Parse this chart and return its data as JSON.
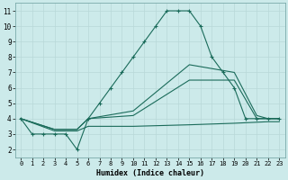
{
  "xlabel": "Humidex (Indice chaleur)",
  "ylabel": "",
  "bg_color": "#cceaea",
  "line_color": "#1a6b5a",
  "xlim": [
    -0.5,
    23.5
  ],
  "ylim": [
    1.5,
    11.5
  ],
  "xticks": [
    0,
    1,
    2,
    3,
    4,
    5,
    6,
    7,
    8,
    9,
    10,
    11,
    12,
    13,
    14,
    15,
    16,
    17,
    18,
    19,
    20,
    21,
    22,
    23
  ],
  "yticks": [
    2,
    3,
    4,
    5,
    6,
    7,
    8,
    9,
    10,
    11
  ],
  "line1_x": [
    0,
    1,
    2,
    3,
    4,
    5,
    6,
    7,
    8,
    9,
    10,
    11,
    12,
    13,
    14,
    15,
    16,
    17,
    18,
    19,
    20,
    21,
    22,
    23
  ],
  "line1_y": [
    4,
    3,
    3,
    3,
    3,
    2,
    4,
    5,
    6,
    7,
    8,
    9,
    10,
    11,
    11,
    11,
    10,
    8,
    7,
    6,
    4,
    4,
    4,
    4
  ],
  "line2_x": [
    0,
    3,
    5,
    6,
    10,
    15,
    19,
    21,
    22,
    23
  ],
  "line2_y": [
    4,
    3.3,
    3.3,
    4,
    4.5,
    7.5,
    7,
    4.2,
    4,
    4
  ],
  "line3_x": [
    0,
    3,
    5,
    6,
    10,
    15,
    19,
    21,
    22,
    23
  ],
  "line3_y": [
    4,
    3.3,
    3.3,
    4,
    4.2,
    6.5,
    6.5,
    4,
    4,
    4
  ],
  "line4_x": [
    0,
    3,
    5,
    6,
    10,
    15,
    19,
    22,
    23
  ],
  "line4_y": [
    4,
    3.2,
    3.2,
    3.5,
    3.5,
    3.6,
    3.7,
    3.8,
    3.8
  ]
}
